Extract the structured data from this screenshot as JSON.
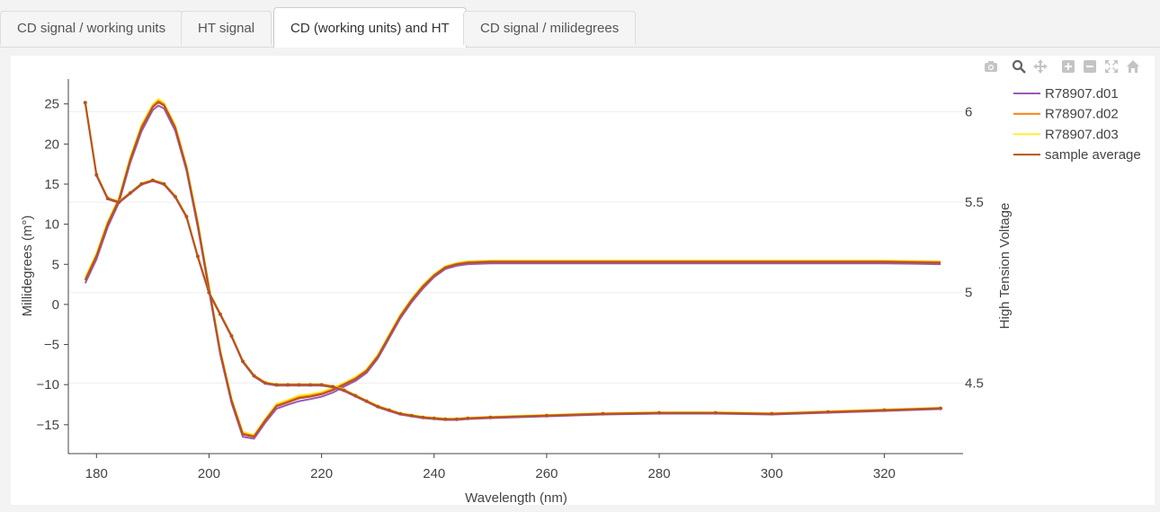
{
  "tabs": [
    {
      "label": "CD signal / working units",
      "active": false
    },
    {
      "label": "HT signal",
      "active": false
    },
    {
      "label": "CD (working units) and HT",
      "active": true
    },
    {
      "label": "CD signal / milidegrees",
      "active": false
    }
  ],
  "modebar": [
    "camera-icon",
    "zoom-icon",
    "pan-icon",
    "zoom-in-icon",
    "zoom-out-icon",
    "autoscale-icon",
    "reset-axes-icon"
  ],
  "chart_data": {
    "type": "line",
    "xlabel": "Wavelength (nm)",
    "ylabel": "Millidegrees (m°)",
    "y2label": "High Tension Voltage",
    "xlim": [
      175,
      334
    ],
    "ylim": [
      -18.6,
      28.1
    ],
    "y2lim": [
      4.11,
      6.18
    ],
    "xticks": [
      180,
      200,
      220,
      240,
      260,
      280,
      300,
      320
    ],
    "yticks": [
      25,
      20,
      15,
      10,
      5,
      0,
      -5,
      -10,
      -15
    ],
    "ytick_labels": [
      "25",
      "20",
      "15",
      "10",
      "5",
      "0",
      "−5",
      "−10",
      "−15"
    ],
    "y2ticks": [
      6,
      5.5,
      5,
      4.5
    ],
    "y2tick_labels": [
      "6",
      "5.5",
      "5",
      "4.5"
    ],
    "grid": true,
    "legend_position": "top-right",
    "legend": [
      "R78907.d01",
      "R78907.d02",
      "R78907.d03",
      "sample average"
    ],
    "colors": {
      "d01": "#9b59b6",
      "d02": "#ff7f0e",
      "d03": "#ffee33",
      "avg": "#b5541c"
    },
    "cd_series": {
      "x": [
        178,
        180,
        182,
        184,
        186,
        188,
        190,
        191,
        192,
        194,
        196,
        198,
        200,
        202,
        204,
        206,
        208,
        210,
        212,
        214,
        216,
        218,
        220,
        222,
        224,
        226,
        228,
        230,
        232,
        234,
        236,
        238,
        240,
        242,
        244,
        246,
        250,
        260,
        270,
        280,
        290,
        300,
        310,
        320,
        330
      ],
      "y": [
        3,
        6,
        10,
        13,
        18,
        22,
        24.6,
        25.2,
        24.8,
        22,
        17,
        10,
        2,
        -6,
        -12,
        -16.2,
        -16.5,
        -14.5,
        -12.7,
        -12.2,
        -11.7,
        -11.5,
        -11.2,
        -10.7,
        -10,
        -9.3,
        -8.3,
        -6.5,
        -4,
        -1.5,
        0.5,
        2.2,
        3.6,
        4.6,
        5,
        5.2,
        5.3,
        5.3,
        5.3,
        5.3,
        5.3,
        5.3,
        5.3,
        5.3,
        5.2
      ],
      "spread": [
        0.6,
        0.6,
        0.6,
        0.5,
        0.6,
        0.7,
        0.6,
        0.7,
        0.6,
        0.6,
        0.5,
        0.6,
        0.5,
        0.5,
        0.5,
        0.5,
        0.4,
        0.4,
        0.5,
        0.5,
        0.6,
        0.5,
        0.5,
        0.5,
        0.4,
        0.4,
        0.4,
        0.4,
        0.4,
        0.4,
        0.4,
        0.4,
        0.3,
        0.3,
        0.3,
        0.3,
        0.3,
        0.3,
        0.3,
        0.3,
        0.3,
        0.3,
        0.3,
        0.3,
        0.3
      ]
    },
    "ht_series": {
      "x": [
        178,
        180,
        182,
        184,
        186,
        188,
        190,
        192,
        194,
        196,
        198,
        200,
        202,
        204,
        206,
        208,
        210,
        212,
        214,
        216,
        218,
        220,
        222,
        224,
        226,
        228,
        230,
        232,
        234,
        236,
        238,
        240,
        242,
        244,
        246,
        250,
        260,
        270,
        280,
        290,
        300,
        310,
        320,
        330
      ],
      "y": [
        6.05,
        5.65,
        5.52,
        5.5,
        5.55,
        5.6,
        5.62,
        5.6,
        5.53,
        5.42,
        5.2,
        5.0,
        4.88,
        4.76,
        4.62,
        4.54,
        4.5,
        4.49,
        4.49,
        4.49,
        4.49,
        4.49,
        4.48,
        4.46,
        4.43,
        4.4,
        4.37,
        4.35,
        4.33,
        4.32,
        4.31,
        4.305,
        4.3,
        4.3,
        4.305,
        4.31,
        4.32,
        4.33,
        4.335,
        4.335,
        4.33,
        4.34,
        4.35,
        4.36
      ]
    }
  }
}
